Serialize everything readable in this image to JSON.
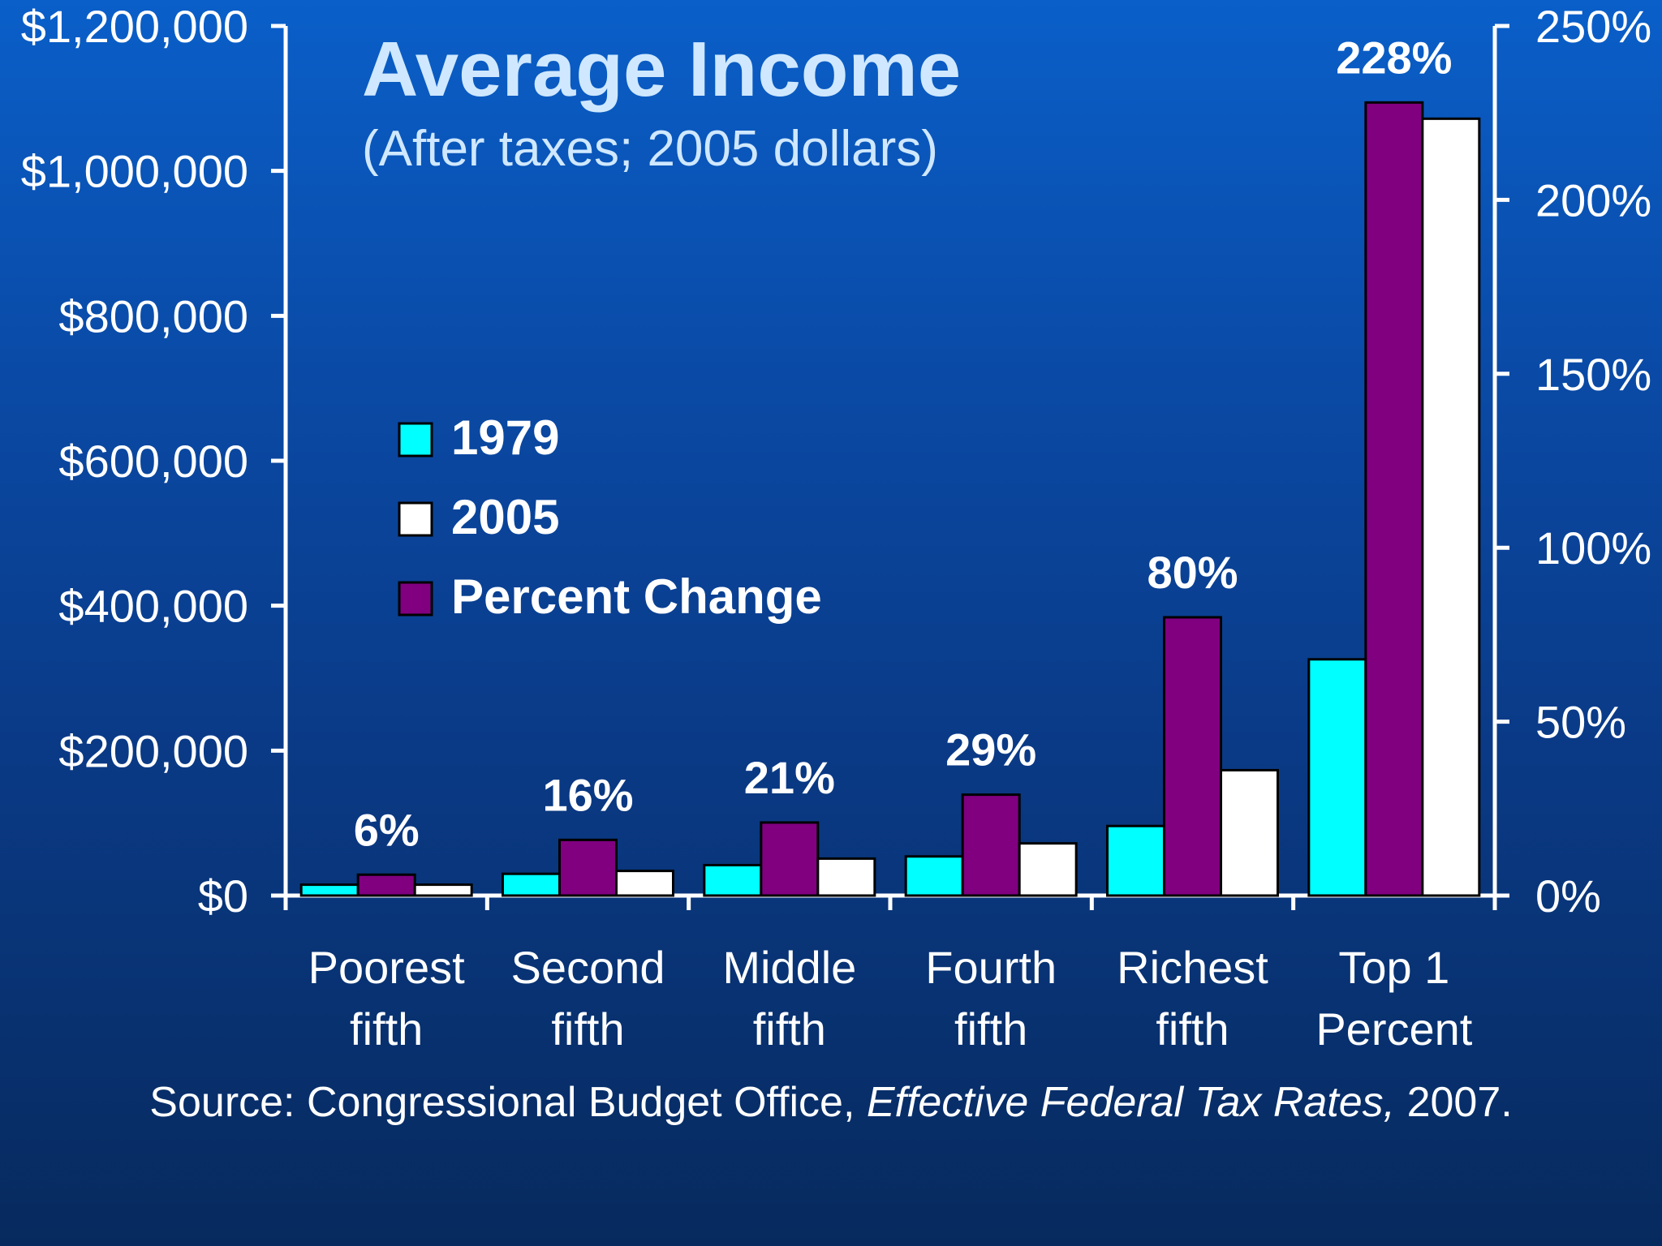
{
  "chart_data": {
    "type": "bar",
    "title": "Average Income",
    "subtitle": "(After taxes; 2005 dollars)",
    "categories": [
      [
        "Poorest",
        "fifth"
      ],
      [
        "Second",
        "fifth"
      ],
      [
        "Middle",
        "fifth"
      ],
      [
        "Fourth",
        "fifth"
      ],
      [
        "Richest",
        "fifth"
      ],
      [
        "Top 1",
        "Percent"
      ]
    ],
    "series": [
      {
        "name": "1979",
        "axis": "left",
        "values": [
          15000,
          30000,
          42000,
          54000,
          96000,
          326000
        ]
      },
      {
        "name": "Percent Change",
        "axis": "right",
        "values": [
          6,
          16,
          21,
          29,
          80,
          228
        ]
      },
      {
        "name": "2005",
        "axis": "left",
        "values": [
          15000,
          34000,
          51000,
          72000,
          173000,
          1072000
        ]
      }
    ],
    "data_labels": [
      "6%",
      "16%",
      "21%",
      "29%",
      "80%",
      "228%"
    ],
    "y_left": {
      "ylim": [
        0,
        1200000
      ],
      "ticks": [
        0,
        200000,
        400000,
        600000,
        800000,
        1000000,
        1200000
      ],
      "tick_labels": [
        "$0",
        "$200,000",
        "$400,000",
        "$600,000",
        "$800,000",
        "$1,000,000",
        "$1,200,000"
      ]
    },
    "y_right": {
      "ylim": [
        0,
        250
      ],
      "ticks": [
        0,
        50,
        100,
        150,
        200,
        250
      ],
      "tick_labels": [
        "0%",
        "50%",
        "100%",
        "150%",
        "200%",
        "250%"
      ]
    },
    "legend": {
      "placement": "upper-left",
      "entries": [
        "1979",
        "2005",
        "Percent Change"
      ]
    },
    "grid": false
  },
  "colors": {
    "1979": "#00ffff",
    "2005": "#ffffff",
    "Percent Change": "#800080",
    "title": "#cfe8ff",
    "text": "#ffffff"
  },
  "source": {
    "prefix": "Source: Congressional Budget Office, ",
    "italic": "Effective Federal Tax Rates,",
    "suffix": " 2007."
  }
}
